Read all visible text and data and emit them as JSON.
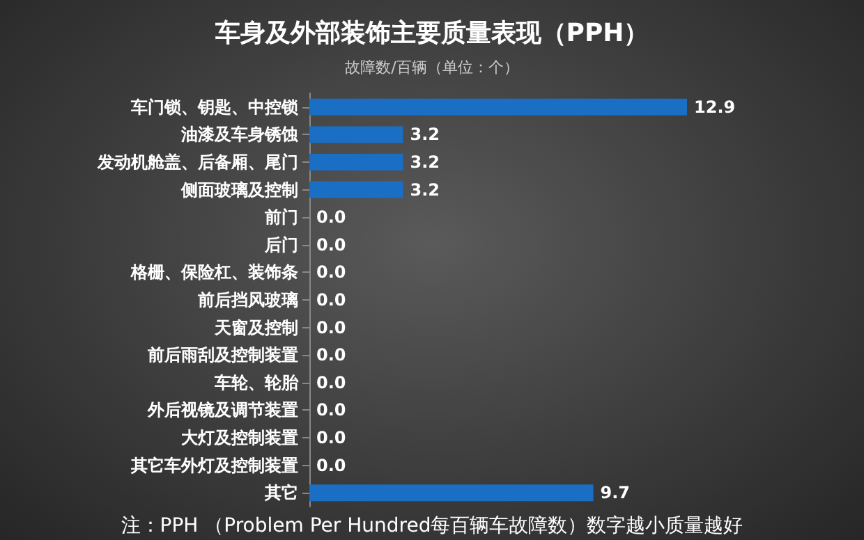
{
  "chart_data": {
    "type": "bar",
    "orientation": "horizontal",
    "title": "车身及外部装饰主要质量表现（PPH）",
    "subtitle": "故障数/百辆（单位：个）",
    "categories": [
      "车门锁、钥匙、中控锁",
      "油漆及车身锈蚀",
      "发动机舱盖、后备厢、尾门",
      "侧面玻璃及控制",
      "前门",
      "后门",
      "格栅、保险杠、装饰条",
      "前后挡风玻璃",
      "天窗及控制",
      "前后雨刮及控制装置",
      "车轮、轮胎",
      "外后视镜及调节装置",
      "大灯及控制装置",
      "其它车外灯及控制装置",
      "其它"
    ],
    "values": [
      12.9,
      3.2,
      3.2,
      3.2,
      0.0,
      0.0,
      0.0,
      0.0,
      0.0,
      0.0,
      0.0,
      0.0,
      0.0,
      0.0,
      9.7
    ],
    "value_labels": [
      "12.9",
      "3.2",
      "3.2",
      "3.2",
      "0.0",
      "0.0",
      "0.0",
      "0.0",
      "0.0",
      "0.0",
      "0.0",
      "0.0",
      "0.0",
      "0.0",
      "9.7"
    ],
    "color": "#1a6fc4",
    "annotations": [
      "注：PPH （Problem Per Hundred每百辆车故障数）数字越小质量越好"
    ]
  }
}
